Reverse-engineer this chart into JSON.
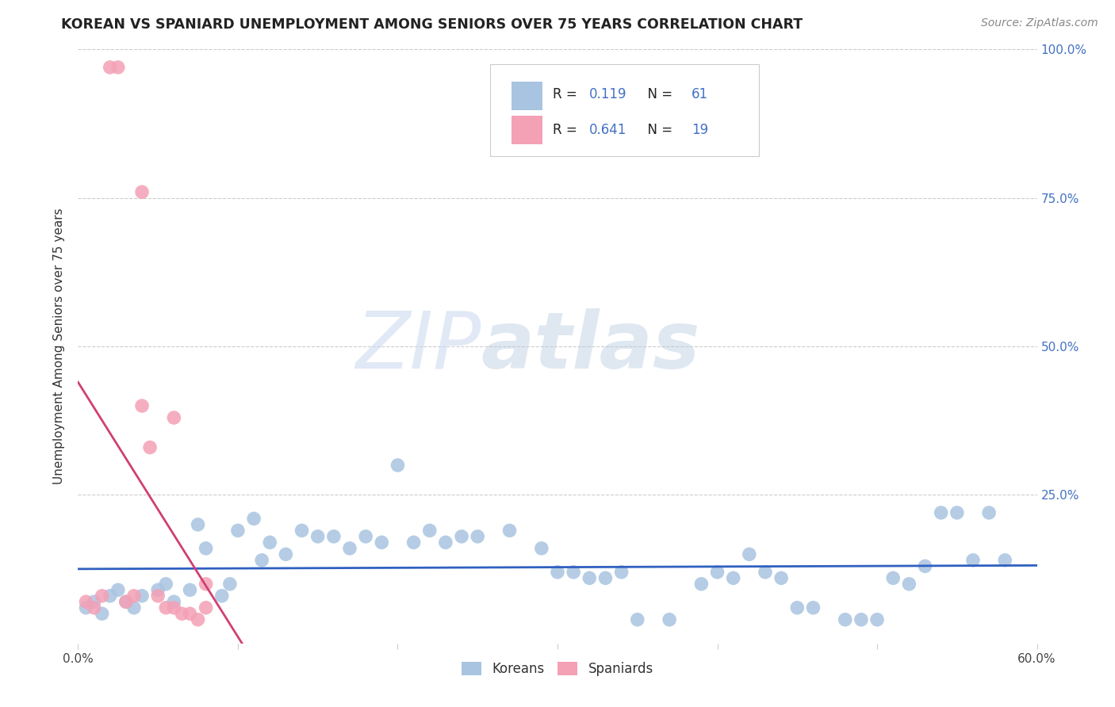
{
  "title": "KOREAN VS SPANIARD UNEMPLOYMENT AMONG SENIORS OVER 75 YEARS CORRELATION CHART",
  "source": "Source: ZipAtlas.com",
  "ylabel": "Unemployment Among Seniors over 75 years",
  "xlim": [
    0.0,
    0.6
  ],
  "ylim": [
    0.0,
    1.0
  ],
  "xticks": [
    0.0,
    0.1,
    0.2,
    0.3,
    0.4,
    0.5,
    0.6
  ],
  "xticklabels": [
    "0.0%",
    "",
    "",
    "",
    "",
    "",
    "60.0%"
  ],
  "yticks": [
    0.0,
    0.25,
    0.5,
    0.75,
    1.0
  ],
  "yticklabels": [
    "",
    "25.0%",
    "50.0%",
    "75.0%",
    "100.0%"
  ],
  "korean_R": "0.119",
  "korean_N": "61",
  "spaniard_R": "0.641",
  "spaniard_N": "19",
  "korean_color": "#a8c4e0",
  "spaniard_color": "#f4a0b5",
  "korean_line_color": "#3060c0",
  "spaniard_line_color": "#d04070",
  "korean_x": [
    0.005,
    0.01,
    0.015,
    0.02,
    0.025,
    0.03,
    0.035,
    0.04,
    0.05,
    0.055,
    0.06,
    0.07,
    0.075,
    0.08,
    0.09,
    0.095,
    0.1,
    0.11,
    0.115,
    0.12,
    0.13,
    0.14,
    0.15,
    0.16,
    0.17,
    0.18,
    0.19,
    0.2,
    0.21,
    0.22,
    0.23,
    0.24,
    0.25,
    0.27,
    0.29,
    0.3,
    0.31,
    0.32,
    0.33,
    0.34,
    0.35,
    0.37,
    0.39,
    0.4,
    0.41,
    0.42,
    0.43,
    0.44,
    0.45,
    0.46,
    0.48,
    0.49,
    0.5,
    0.51,
    0.52,
    0.53,
    0.54,
    0.55,
    0.56,
    0.57,
    0.58
  ],
  "korean_y": [
    0.06,
    0.07,
    0.05,
    0.08,
    0.09,
    0.07,
    0.06,
    0.08,
    0.09,
    0.1,
    0.07,
    0.09,
    0.2,
    0.16,
    0.08,
    0.1,
    0.19,
    0.21,
    0.14,
    0.17,
    0.15,
    0.19,
    0.18,
    0.18,
    0.16,
    0.18,
    0.17,
    0.3,
    0.17,
    0.19,
    0.17,
    0.18,
    0.18,
    0.19,
    0.16,
    0.12,
    0.12,
    0.11,
    0.11,
    0.12,
    0.04,
    0.04,
    0.1,
    0.12,
    0.11,
    0.15,
    0.12,
    0.11,
    0.06,
    0.06,
    0.04,
    0.04,
    0.04,
    0.11,
    0.1,
    0.13,
    0.22,
    0.22,
    0.14,
    0.22,
    0.14
  ],
  "spaniard_x": [
    0.005,
    0.01,
    0.015,
    0.02,
    0.025,
    0.03,
    0.035,
    0.04,
    0.045,
    0.05,
    0.055,
    0.06,
    0.065,
    0.07,
    0.075,
    0.08,
    0.04,
    0.06,
    0.08
  ],
  "spaniard_y": [
    0.07,
    0.06,
    0.08,
    0.97,
    0.97,
    0.07,
    0.08,
    0.4,
    0.33,
    0.08,
    0.06,
    0.06,
    0.05,
    0.05,
    0.04,
    0.1,
    0.76,
    0.38,
    0.06
  ],
  "watermark_zip": "ZIP",
  "watermark_atlas": "atlas",
  "legend_label1": "Koreans",
  "legend_label2": "Spaniards"
}
